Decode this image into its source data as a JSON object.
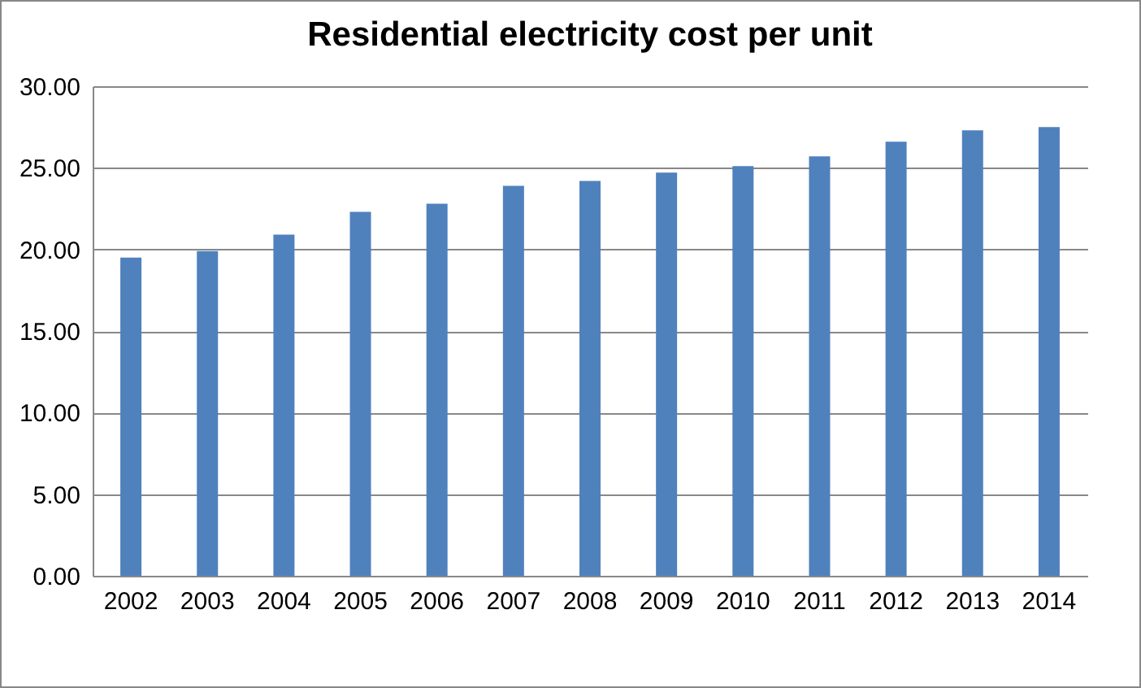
{
  "chart_data": {
    "type": "bar",
    "title": "Residential electricity cost per unit",
    "categories": [
      "2002",
      "2003",
      "2004",
      "2005",
      "2006",
      "2007",
      "2008",
      "2009",
      "2010",
      "2011",
      "2012",
      "2013",
      "2014"
    ],
    "values": [
      19.5,
      19.9,
      20.9,
      22.3,
      22.8,
      23.9,
      24.2,
      24.7,
      25.1,
      25.7,
      26.6,
      27.3,
      27.5
    ],
    "color": "#4f81bd",
    "ylim": [
      0,
      30
    ],
    "yticks": [
      {
        "value": 0,
        "label": "0.00"
      },
      {
        "value": 5,
        "label": "5.00"
      },
      {
        "value": 10,
        "label": "10.00"
      },
      {
        "value": 15,
        "label": "15.00"
      },
      {
        "value": 20,
        "label": "20.00"
      },
      {
        "value": 25,
        "label": "25.00"
      },
      {
        "value": 30,
        "label": "30.00"
      }
    ],
    "grid": "y"
  }
}
